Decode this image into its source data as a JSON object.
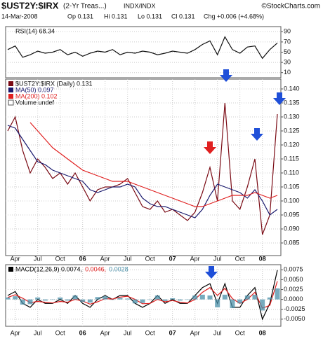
{
  "header": {
    "symbol": "$UST2Y:$IRX",
    "description": "(2-Yr Treas...)",
    "exchange": "INDX/INDX",
    "copyright": "©StockCharts.com",
    "date": "14-Mar-2008",
    "open": "Op 0.131",
    "high": "Hi 0.131",
    "low": "Lo 0.131",
    "close": "Cl 0.131",
    "change": "Chg +0.006 (+4.68%)"
  },
  "chart_data": [
    {
      "type": "line",
      "title": "RSI(14) 68.34",
      "ylim": [
        0,
        100
      ],
      "yticks": [
        90,
        70,
        50,
        30,
        10
      ],
      "grid": true,
      "legend_layout": "column",
      "series": [
        {
          "name": null,
          "color": "#111111",
          "values": [
            55,
            62,
            40,
            45,
            52,
            48,
            50,
            55,
            45,
            50,
            42,
            48,
            52,
            50,
            55,
            45,
            50,
            48,
            52,
            50,
            45,
            48,
            52,
            50,
            48,
            55,
            65,
            72,
            45,
            80,
            55,
            48,
            60,
            62,
            38,
            55,
            68
          ]
        }
      ]
    },
    {
      "type": "line",
      "ylim": [
        0.0805,
        0.1435
      ],
      "legend_layout": "column",
      "grid": true,
      "extra_legend": "Volume undef",
      "yticks": [
        {
          "value": 0.14,
          "label": "0.140"
        },
        0.135,
        {
          "value": 0.13,
          "label": "0.130"
        },
        0.125,
        {
          "value": 0.12,
          "label": "0.120"
        },
        0.115,
        {
          "value": 0.11,
          "label": "0.110"
        },
        0.105,
        {
          "value": 0.1,
          "label": "0.100"
        },
        0.095,
        {
          "value": 0.09,
          "label": "0.090"
        },
        0.085
      ],
      "categories": [
        null,
        "Apr",
        null,
        null,
        "Jul",
        null,
        null,
        "Oct",
        null,
        null,
        "06",
        null,
        null,
        "Apr",
        null,
        null,
        "Jul",
        null,
        null,
        "Oct",
        null,
        null,
        "07",
        null,
        null,
        "Apr",
        null,
        null,
        "Jul",
        null,
        null,
        "Oct",
        null,
        null,
        "08",
        null,
        null
      ],
      "series": [
        {
          "name": "$UST2Y:$IRX (Daily) 0.131",
          "color": "#7a0a14",
          "values": [
            0.125,
            0.13,
            0.118,
            0.11,
            0.115,
            0.112,
            0.108,
            0.11,
            0.106,
            0.11,
            0.105,
            0.1,
            0.104,
            0.105,
            0.105,
            0.106,
            0.108,
            0.103,
            0.098,
            0.097,
            0.1,
            0.096,
            0.097,
            0.095,
            0.093,
            0.096,
            0.103,
            0.112,
            0.1,
            0.135,
            0.1,
            0.097,
            0.105,
            0.115,
            0.088,
            0.095,
            0.131
          ]
        },
        {
          "name": "MA(50) 0.097",
          "color": "#1a1a6e",
          "values": [
            0.127,
            0.126,
            0.122,
            0.118,
            0.114,
            0.113,
            0.111,
            0.11,
            0.109,
            0.108,
            0.107,
            0.104,
            0.103,
            0.104,
            0.105,
            0.105,
            0.106,
            0.105,
            0.101,
            0.099,
            0.098,
            0.098,
            0.097,
            0.096,
            0.095,
            0.094,
            0.097,
            0.102,
            0.106,
            0.105,
            0.104,
            0.103,
            0.101,
            0.104,
            0.1,
            0.095,
            0.097
          ]
        },
        {
          "name": "MA(200) 0.102",
          "color": "#e02020",
          "values": [
            null,
            null,
            null,
            0.128,
            0.125,
            0.122,
            0.119,
            0.117,
            0.115,
            0.113,
            0.111,
            0.11,
            0.109,
            0.108,
            0.107,
            0.107,
            0.107,
            0.106,
            0.105,
            0.104,
            0.103,
            0.102,
            0.101,
            0.1,
            0.099,
            0.098,
            0.098,
            0.099,
            0.1,
            0.101,
            0.102,
            0.102,
            0.102,
            0.103,
            0.102,
            0.101,
            0.102
          ]
        }
      ]
    },
    {
      "type": "line",
      "ylim": [
        -0.0068,
        0.0088
      ],
      "legend_layout": "row",
      "grid": true,
      "yticks": [
        0.0075,
        {
          "value": 0.005,
          "label": "0.0050"
        },
        0.0025,
        {
          "value": 0,
          "label": "0.0000"
        },
        -0.0025,
        {
          "value": -0.005,
          "label": "-0.0050"
        }
      ],
      "categories": [
        null,
        "Apr",
        null,
        null,
        "Jul",
        null,
        null,
        "Oct",
        null,
        null,
        "06",
        null,
        null,
        "Apr",
        null,
        null,
        "Jul",
        null,
        null,
        "Oct",
        null,
        null,
        "07",
        null,
        null,
        "Apr",
        null,
        null,
        "Jul",
        null,
        null,
        "Oct",
        null,
        null,
        "08",
        null,
        null
      ],
      "series": [
        {
          "name": "MACD(12,26,9) 0.0074,",
          "color": "#000000",
          "values": [
            0.001,
            0.002,
            -0.001,
            -0.002,
            0,
            -0.001,
            -0.001,
            0,
            -0.001,
            0.001,
            -0.001,
            -0.002,
            0,
            0.001,
            0,
            0.001,
            0.001,
            -0.001,
            -0.002,
            -0.001,
            0.001,
            -0.001,
            0,
            -0.001,
            -0.001,
            0.001,
            0.003,
            0.004,
            -0.001,
            0.004,
            -0.002,
            -0.002,
            0.001,
            0.003,
            -0.005,
            -0.001,
            0.0074
          ]
        },
        {
          "name": "0.0046,",
          "color": "#e02020",
          "values": [
            0.0005,
            0.0012,
            0.0003,
            -0.0008,
            -0.0005,
            -0.0007,
            -0.0009,
            -0.0005,
            -0.0007,
            0,
            -0.0004,
            -0.0012,
            -0.0006,
            0.0002,
            0.0001,
            0.0006,
            0.0008,
            0,
            -0.0011,
            -0.001,
            0,
            -0.0006,
            -0.0003,
            -0.0007,
            -0.0009,
            0,
            0.0018,
            0.003,
            0.001,
            0.0028,
            0.0002,
            -0.001,
            0,
            0.0018,
            -0.0022,
            -0.0015,
            0.0046
          ]
        },
        {
          "name": "0.0028",
          "color": "#4a8fa8",
          "type": "bar",
          "values": [
            0.0005,
            0.0008,
            -0.0013,
            -0.0012,
            0.0005,
            -0.0003,
            -0.0001,
            0.0005,
            -0.0003,
            0.001,
            -0.0006,
            -0.0008,
            0.0006,
            0.0008,
            -0.0001,
            0.0004,
            0.0002,
            -0.001,
            -0.0009,
            0,
            0.001,
            -0.0004,
            0.0003,
            -0.0003,
            -0.0001,
            0.001,
            0.0012,
            0.001,
            -0.002,
            0.0012,
            -0.0022,
            -0.001,
            0.001,
            0.0012,
            -0.0028,
            0.0005,
            0.0028
          ]
        }
      ]
    }
  ]
}
